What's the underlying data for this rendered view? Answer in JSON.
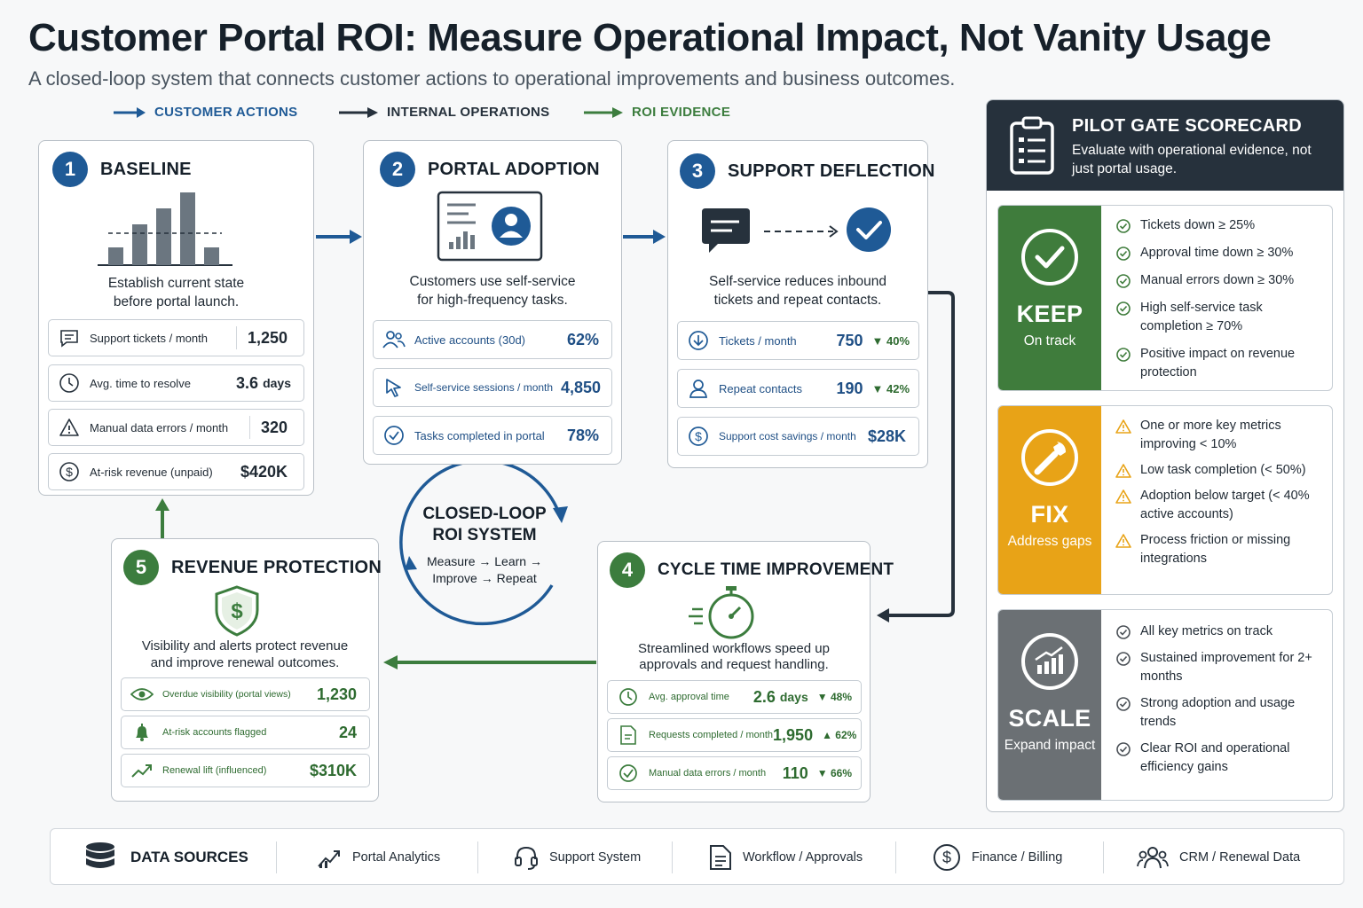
{
  "header": {
    "title": "Customer Portal ROI: Measure Operational Impact, Not Vanity Usage",
    "subtitle": "A closed-loop system that connects customer actions to operational improvements and business outcomes."
  },
  "legend": [
    {
      "label": "CUSTOMER ACTIONS",
      "color": "#1f5a96"
    },
    {
      "label": "INTERNAL OPERATIONS",
      "color": "#26313c"
    },
    {
      "label": "ROI EVIDENCE",
      "color": "#3c7d3e"
    }
  ],
  "steps": {
    "baseline": {
      "number": "1",
      "title": "BASELINE",
      "description_1": "Establish current state",
      "description_2": "before portal launch.",
      "metrics": [
        {
          "icon": "message-icon",
          "label": "Support tickets / month",
          "value": "1,250"
        },
        {
          "icon": "clock-icon",
          "label": "Avg. time to resolve",
          "value": "3.6",
          "unit": "days"
        },
        {
          "icon": "warning-icon",
          "label": "Manual data errors / month",
          "value": "320"
        },
        {
          "icon": "dollar-icon",
          "label": "At-risk revenue (unpaid)",
          "value": "$420K"
        }
      ]
    },
    "adoption": {
      "number": "2",
      "title": "PORTAL ADOPTION",
      "description_1": "Customers use self-service",
      "description_2": "for high-frequency tasks.",
      "metrics": [
        {
          "icon": "users-icon",
          "label": "Active accounts (30d)",
          "value": "62%"
        },
        {
          "icon": "cursor-icon",
          "label": "Self-service sessions / month",
          "value": "4,850"
        },
        {
          "icon": "check-circle-icon",
          "label": "Tasks completed in portal",
          "value": "78%"
        }
      ]
    },
    "deflection": {
      "number": "3",
      "title": "SUPPORT DEFLECTION",
      "description_1": "Self-service reduces inbound",
      "description_2": "tickets and repeat contacts.",
      "metrics": [
        {
          "icon": "arrow-down-circle-icon",
          "label": "Tickets / month",
          "value": "750",
          "delta": "▼ 40%"
        },
        {
          "icon": "person-icon",
          "label": "Repeat contacts",
          "value": "190",
          "delta": "▼ 42%"
        },
        {
          "icon": "dollar-icon",
          "label": "Support cost savings / month",
          "value": "$28K"
        }
      ]
    },
    "cycle": {
      "number": "4",
      "title": "CYCLE TIME IMPROVEMENT",
      "description_1": "Streamlined workflows speed up",
      "description_2": "approvals and request handling.",
      "metrics": [
        {
          "icon": "clock-icon",
          "label": "Avg. approval time",
          "value": "2.6",
          "unit": "days",
          "delta": "▼ 48%"
        },
        {
          "icon": "document-icon",
          "label": "Requests completed / month",
          "value": "1,950",
          "delta": "▲ 62%"
        },
        {
          "icon": "check-circle-icon",
          "label": "Manual data errors / month",
          "value": "110",
          "delta": "▼ 66%"
        }
      ]
    },
    "revenue": {
      "number": "5",
      "title": "REVENUE PROTECTION",
      "description_1": "Visibility and alerts protect revenue",
      "description_2": "and improve renewal outcomes.",
      "metrics": [
        {
          "icon": "eye-icon",
          "label": "Overdue visibility (portal views)",
          "value": "1,230"
        },
        {
          "icon": "bell-icon",
          "label": "At-risk accounts flagged",
          "value": "24"
        },
        {
          "icon": "trend-up-icon",
          "label": "Renewal lift (influenced)",
          "value": "$310K"
        }
      ]
    }
  },
  "loop": {
    "title_1": "CLOSED-LOOP",
    "title_2": "ROI SYSTEM",
    "sub_1": "Measure → Learn →",
    "sub_2": "Improve → Repeat"
  },
  "scorecard": {
    "title": "PILOT GATE SCORECARD",
    "subtitle": "Evaluate with operational evidence, not just portal usage.",
    "gates": [
      {
        "name": "KEEP",
        "tag": "On track",
        "color": "#3f7c3c",
        "items": [
          "Tickets down ≥ 25%",
          "Approval time down ≥ 30%",
          "Manual errors down ≥ 30%",
          "High self-service task completion ≥ 70%",
          "Positive impact on revenue protection"
        ]
      },
      {
        "name": "FIX",
        "tag": "Address gaps",
        "color": "#e8a317",
        "items": [
          "One or more key metrics improving < 10%",
          "Low task completion (< 50%)",
          "Adoption below target (< 40% active accounts)",
          "Process friction or missing integrations"
        ]
      },
      {
        "name": "SCALE",
        "tag": "Expand impact",
        "color": "#6b7074",
        "items": [
          "All key metrics on track",
          "Sustained improvement for 2+ months",
          "Strong adoption and usage trends",
          "Clear ROI and operational efficiency gains"
        ]
      }
    ]
  },
  "data_sources": {
    "label": "DATA SOURCES",
    "items": [
      {
        "icon": "analytics-icon",
        "label": "Portal Analytics"
      },
      {
        "icon": "headset-icon",
        "label": "Support System"
      },
      {
        "icon": "document-icon",
        "label": "Workflow / Approvals"
      },
      {
        "icon": "dollar-icon",
        "label": "Finance / Billing"
      },
      {
        "icon": "people-icon",
        "label": "CRM / Renewal Data"
      }
    ]
  }
}
